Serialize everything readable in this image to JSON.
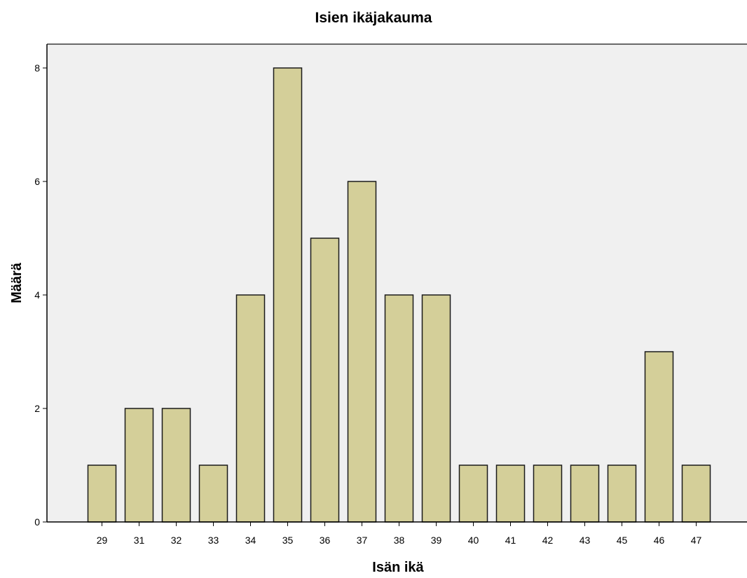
{
  "chart_data": {
    "type": "bar",
    "title": "Isien ikäjakauma",
    "xlabel": "Isän ikä",
    "ylabel": "Määrä",
    "categories": [
      "29",
      "31",
      "32",
      "33",
      "34",
      "35",
      "36",
      "37",
      "38",
      "39",
      "40",
      "41",
      "42",
      "43",
      "45",
      "46",
      "47"
    ],
    "values": [
      1,
      2,
      2,
      1,
      4,
      8,
      5,
      6,
      4,
      4,
      1,
      1,
      1,
      1,
      1,
      3,
      1
    ],
    "ylim": [
      0,
      8.4
    ],
    "yticks": [
      0,
      2,
      4,
      6,
      8
    ],
    "grid": false,
    "legend": "none",
    "colors": {
      "bar_fill": "#d4cf99",
      "bar_stroke": "#1a1a1a",
      "plot_background": "#f0f0f0",
      "axis": "#000000"
    }
  }
}
